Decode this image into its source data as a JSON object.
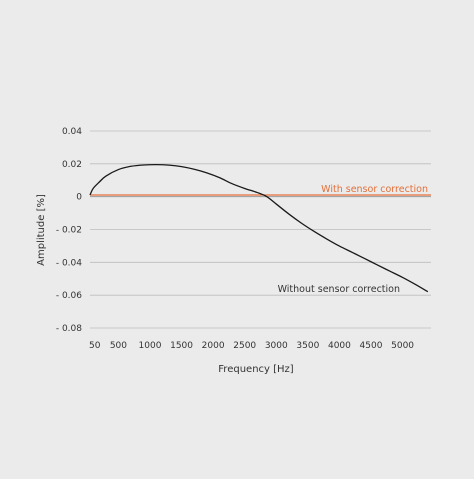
{
  "colors": {
    "background": "#ebebeb",
    "grid": "#bdbdbd",
    "baseline": "#9a9a9a",
    "text": "#333333",
    "without_correction": "#1a1a1a",
    "with_correction": "#e2703a"
  },
  "chart_data": {
    "type": "line",
    "title": "",
    "xlabel": "Frequency [Hz]",
    "ylabel": "Amplitude [%]",
    "xlim": [
      50,
      5450
    ],
    "ylim": [
      -0.08,
      0.04
    ],
    "grid": true,
    "x_ticks": [
      50,
      500,
      1000,
      1500,
      2000,
      2500,
      3000,
      3500,
      4000,
      4500,
      5000
    ],
    "x_tick_labels": [
      "50",
      "500",
      "1000",
      "1500",
      "2000",
      "2500",
      "3000",
      "3500",
      "4000",
      "4500",
      "5000"
    ],
    "y_ticks": [
      0.04,
      0.02,
      0,
      -0.02,
      -0.04,
      -0.06,
      -0.08
    ],
    "y_tick_labels": [
      "0.04",
      "0.02",
      "0",
      "- 0.02",
      "- 0.04",
      "- 0.06",
      "- 0.08"
    ],
    "series": [
      {
        "name": "With sensor correction",
        "color": "#e2703a",
        "x": [
          50,
          5450
        ],
        "y": [
          0.001,
          0.001
        ]
      },
      {
        "name": "Without sensor correction",
        "color": "#1a1a1a",
        "x": [
          50,
          100,
          200,
          300,
          500,
          700,
          900,
          1100,
          1300,
          1500,
          1700,
          1900,
          2100,
          2300,
          2500,
          2700,
          2850,
          3000,
          3200,
          3400,
          3600,
          3800,
          4000,
          4200,
          4400,
          4600,
          4800,
          5000,
          5200,
          5400
        ],
        "y": [
          0.001,
          0.005,
          0.009,
          0.0125,
          0.0165,
          0.0185,
          0.0193,
          0.0195,
          0.0192,
          0.0183,
          0.0167,
          0.0145,
          0.0116,
          0.0079,
          0.005,
          0.0025,
          0.0,
          -0.0045,
          -0.0106,
          -0.0162,
          -0.0212,
          -0.0258,
          -0.0301,
          -0.0339,
          -0.0377,
          -0.0416,
          -0.0454,
          -0.0492,
          -0.0534,
          -0.0579
        ]
      }
    ]
  }
}
